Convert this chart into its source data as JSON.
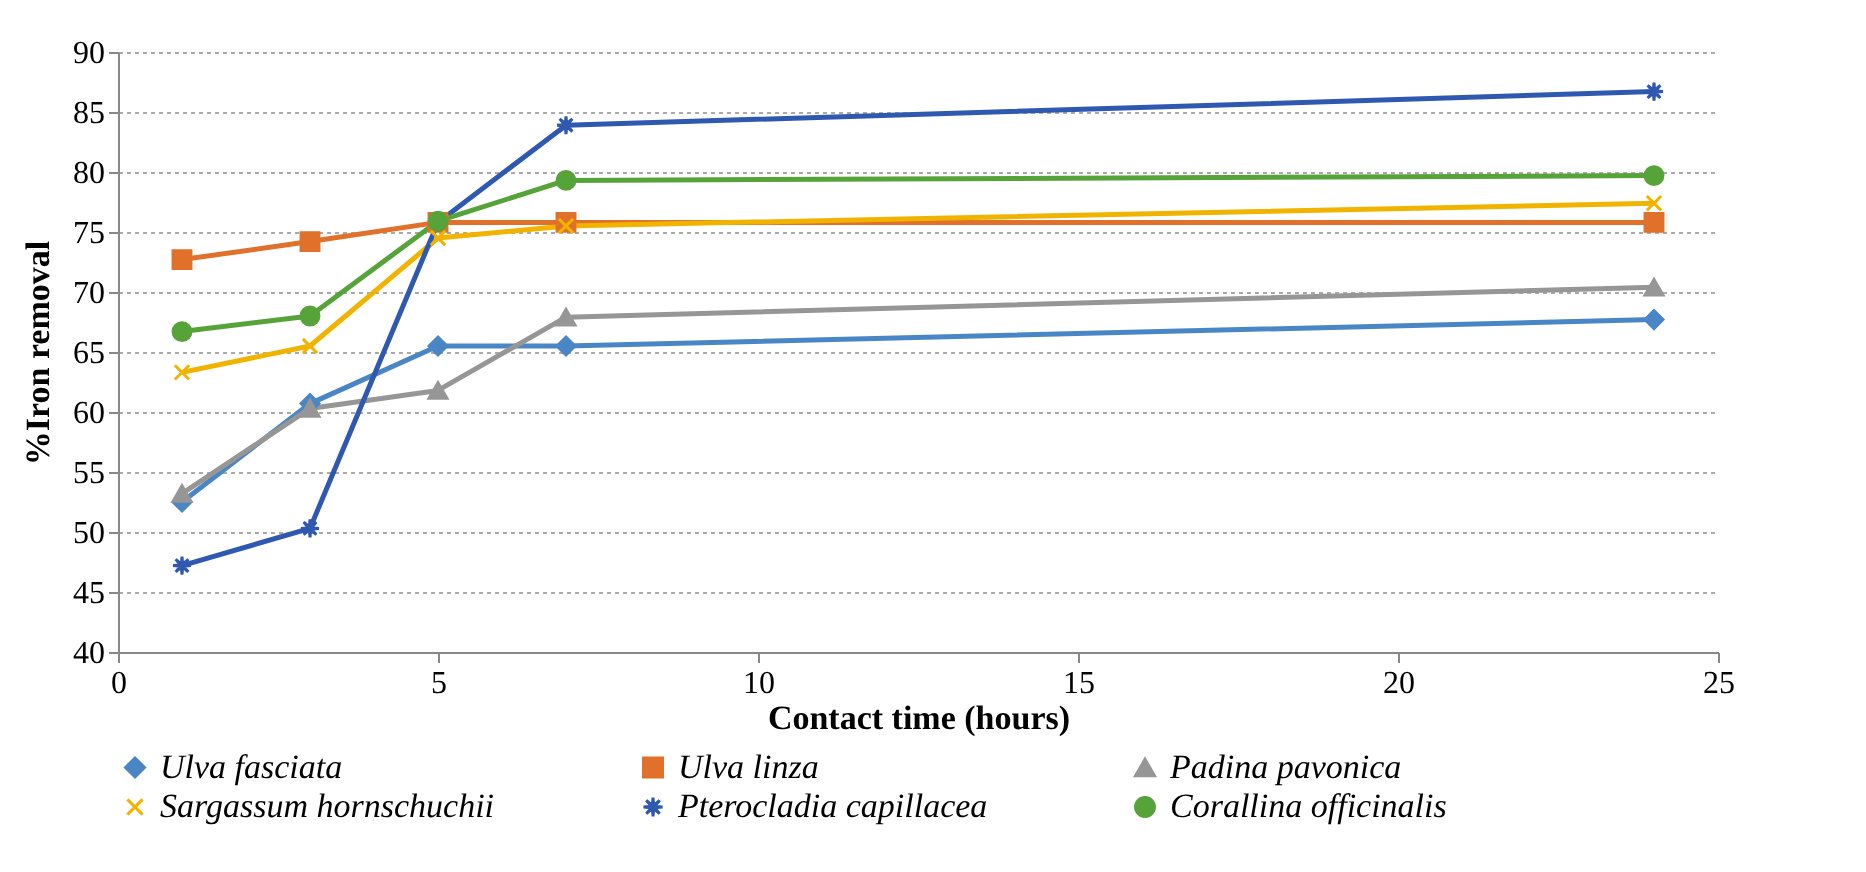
{
  "chart_data": {
    "type": "line",
    "xlabel": "Contact time (hours)",
    "ylabel": "%Iron removal",
    "x": [
      1,
      3,
      5,
      7,
      24
    ],
    "series": [
      {
        "name": "Ulva fasciata",
        "color": "#4a86c5",
        "marker": "diamond",
        "values": [
          52.5,
          60.7,
          65.5,
          65.5,
          67.7
        ]
      },
      {
        "name": "Ulva linza",
        "color": "#e0702a",
        "marker": "square",
        "values": [
          72.7,
          74.2,
          75.8,
          75.8,
          75.8
        ]
      },
      {
        "name": "Padina pavonica",
        "color": "#969696",
        "marker": "triangle",
        "values": [
          53.2,
          60.3,
          61.8,
          67.9,
          70.4
        ]
      },
      {
        "name": "Sargassum hornschuchii",
        "color": "#f0b400",
        "marker": "cross",
        "values": [
          63.3,
          65.5,
          74.5,
          75.5,
          77.4
        ]
      },
      {
        "name": "Pterocladia capillacea",
        "color": "#2f58b0",
        "marker": "star",
        "values": [
          47.2,
          50.3,
          75.8,
          83.9,
          86.7
        ]
      },
      {
        "name": "Corallina officinalis",
        "color": "#56a33a",
        "marker": "circle",
        "values": [
          66.7,
          68.0,
          75.9,
          79.3,
          79.7
        ]
      }
    ],
    "xlim": [
      0,
      25
    ],
    "xticks": [
      0,
      5,
      10,
      15,
      20,
      25
    ],
    "ylim": [
      40,
      90
    ],
    "yticks": [
      40,
      45,
      50,
      55,
      60,
      65,
      70,
      75,
      80,
      85,
      90
    ],
    "grid": "y",
    "legend": "bottom",
    "line_style": "solid"
  }
}
